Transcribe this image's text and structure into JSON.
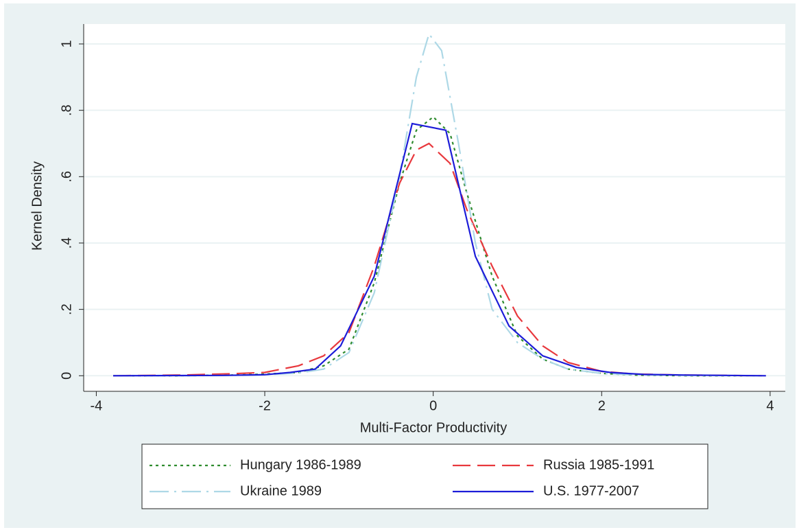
{
  "chart_data": {
    "type": "line",
    "x_label": "Multi-Factor Productivity",
    "y_label": "Kernel Density",
    "xlim": [
      -4.15,
      4.18
    ],
    "ylim": [
      -0.047,
      1.06
    ],
    "xticks": [
      -4,
      -2,
      0,
      2,
      4
    ],
    "yticks": [
      0,
      {
        "value": 0.2,
        "label": ".2"
      },
      {
        "value": 0.4,
        "label": ".4"
      },
      {
        "value": 0.6,
        "label": ".6"
      },
      {
        "value": 0.8,
        "label": ".8"
      },
      1
    ],
    "grid": true,
    "series": [
      {
        "name": "Hungary 1986-1989",
        "color": "#2e8b2e",
        "dash": "4 5",
        "x": [
          -3.8,
          -3,
          -2.4,
          -2,
          -1.6,
          -1.3,
          -1,
          -0.7,
          -0.4,
          -0.2,
          0,
          0.2,
          0.4,
          0.7,
          1,
          1.3,
          1.6,
          2,
          2.4,
          3,
          3.9
        ],
        "values": [
          0,
          0,
          0.002,
          0.005,
          0.01,
          0.03,
          0.08,
          0.28,
          0.58,
          0.74,
          0.78,
          0.73,
          0.55,
          0.3,
          0.12,
          0.05,
          0.02,
          0.007,
          0.002,
          0,
          0
        ]
      },
      {
        "name": "Russia 1985-1991",
        "color": "#e8383d",
        "dash": "26 10",
        "x": [
          -3.8,
          -3,
          -2.4,
          -2,
          -1.6,
          -1.3,
          -1,
          -0.7,
          -0.4,
          -0.2,
          -0.05,
          0.2,
          0.4,
          0.7,
          1,
          1.3,
          1.6,
          2,
          2.4,
          3,
          3.9
        ],
        "values": [
          0,
          0.002,
          0.006,
          0.01,
          0.03,
          0.06,
          0.13,
          0.33,
          0.58,
          0.68,
          0.7,
          0.64,
          0.5,
          0.33,
          0.18,
          0.09,
          0.04,
          0.013,
          0.005,
          0.002,
          0
        ]
      },
      {
        "name": "Ukraine 1989",
        "color": "#add8e6",
        "dash": "28 8 3 8",
        "x": [
          -3.8,
          -3,
          -2.4,
          -2,
          -1.6,
          -1.3,
          -1,
          -0.7,
          -0.4,
          -0.2,
          -0.05,
          0.1,
          0.3,
          0.5,
          0.7,
          1,
          1.3,
          1.6,
          2,
          2.4,
          3,
          3.9
        ],
        "values": [
          0,
          0,
          0.001,
          0.003,
          0.008,
          0.02,
          0.07,
          0.25,
          0.6,
          0.9,
          1.03,
          0.98,
          0.7,
          0.4,
          0.2,
          0.1,
          0.05,
          0.02,
          0.007,
          0.003,
          0.001,
          0
        ]
      },
      {
        "name": "U.S. 1977-2007",
        "color": "#1c1cd8",
        "dash": "none",
        "x": [
          -3.8,
          -2.5,
          -2,
          -1.7,
          -1.4,
          -1.1,
          -0.7,
          -0.25,
          0.15,
          0.5,
          0.9,
          1.3,
          1.7,
          2.1,
          2.5,
          3,
          3.95
        ],
        "values": [
          0,
          0.001,
          0.003,
          0.01,
          0.02,
          0.09,
          0.3,
          0.76,
          0.74,
          0.36,
          0.15,
          0.06,
          0.025,
          0.01,
          0.004,
          0.002,
          0
        ]
      }
    ]
  }
}
